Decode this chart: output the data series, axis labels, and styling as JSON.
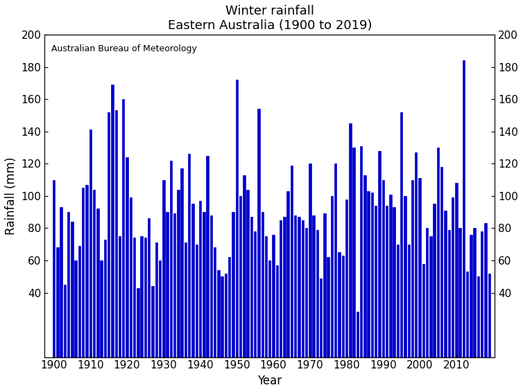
{
  "title": "Winter rainfall\nEastern Australia (1900 to 2019)",
  "xlabel": "Year",
  "ylabel": "Rainfall (mm)",
  "annotation": "Australian Bureau of Meteorology",
  "bar_color": "#0000CC",
  "background_color": "#ffffff",
  "ylim": [
    0,
    200
  ],
  "yticks": [
    40,
    60,
    80,
    100,
    120,
    140,
    160,
    180,
    200
  ],
  "xlim": [
    1897.5,
    2020.5
  ],
  "years": [
    1900,
    1901,
    1902,
    1903,
    1904,
    1905,
    1906,
    1907,
    1908,
    1909,
    1910,
    1911,
    1912,
    1913,
    1914,
    1915,
    1916,
    1917,
    1918,
    1919,
    1920,
    1921,
    1922,
    1923,
    1924,
    1925,
    1926,
    1927,
    1928,
    1929,
    1930,
    1931,
    1932,
    1933,
    1934,
    1935,
    1936,
    1937,
    1938,
    1939,
    1940,
    1941,
    1942,
    1943,
    1944,
    1945,
    1946,
    1947,
    1948,
    1949,
    1950,
    1951,
    1952,
    1953,
    1954,
    1955,
    1956,
    1957,
    1958,
    1959,
    1960,
    1961,
    1962,
    1963,
    1964,
    1965,
    1966,
    1967,
    1968,
    1969,
    1970,
    1971,
    1972,
    1973,
    1974,
    1975,
    1976,
    1977,
    1978,
    1979,
    1980,
    1981,
    1982,
    1983,
    1984,
    1985,
    1986,
    1987,
    1988,
    1989,
    1990,
    1991,
    1992,
    1993,
    1994,
    1995,
    1996,
    1997,
    1998,
    1999,
    2000,
    2001,
    2002,
    2003,
    2004,
    2005,
    2006,
    2007,
    2008,
    2009,
    2010,
    2011,
    2012,
    2013,
    2014,
    2015,
    2016,
    2017,
    2018,
    2019
  ],
  "values": [
    110,
    68,
    93,
    45,
    90,
    84,
    60,
    69,
    105,
    107,
    141,
    104,
    92,
    60,
    73,
    152,
    169,
    153,
    75,
    160,
    124,
    99,
    74,
    43,
    75,
    74,
    86,
    44,
    71,
    60,
    110,
    90,
    122,
    89,
    104,
    117,
    71,
    126,
    95,
    70,
    97,
    90,
    125,
    88,
    68,
    54,
    50,
    52,
    62,
    90,
    172,
    100,
    113,
    104,
    87,
    78,
    154,
    90,
    75,
    60,
    76,
    57,
    85,
    87,
    103,
    119,
    88,
    87,
    85,
    80,
    120,
    88,
    79,
    49,
    89,
    62,
    100,
    120,
    65,
    63,
    98,
    145,
    130,
    28,
    131,
    113,
    103,
    102,
    94,
    128,
    110,
    94,
    101,
    93,
    70,
    152,
    100,
    70,
    110,
    127,
    111,
    58,
    80,
    75,
    95,
    130,
    118,
    91,
    79,
    99,
    108,
    80,
    184,
    53,
    76,
    80,
    50,
    78,
    83,
    52
  ]
}
